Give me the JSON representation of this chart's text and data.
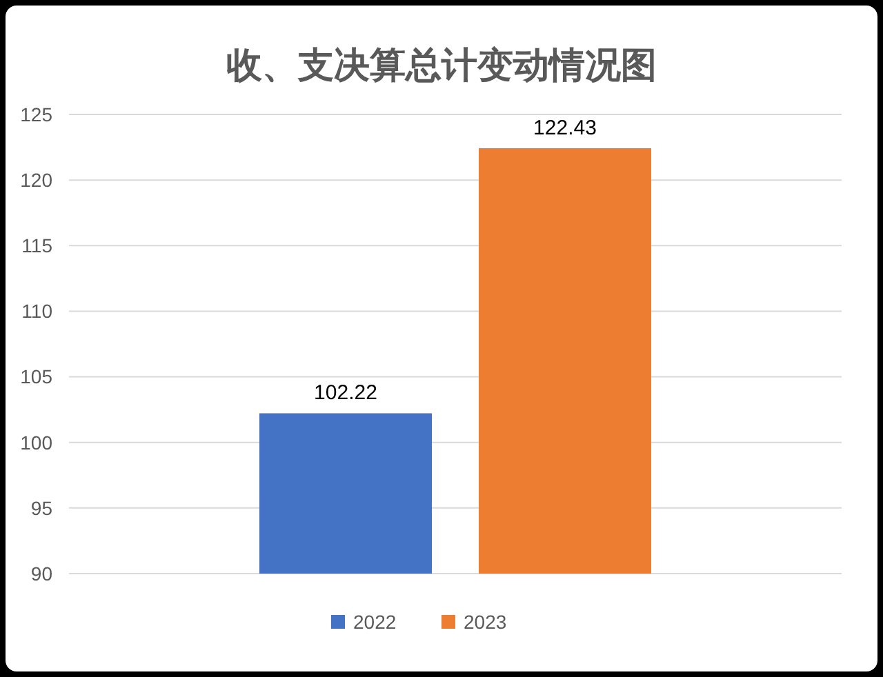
{
  "chart_data": {
    "type": "bar",
    "title": "收、支决算总计变动情况图",
    "categories": [
      null
    ],
    "series": [
      {
        "name": "2022",
        "color": "#4472c4",
        "values": [
          102.22
        ]
      },
      {
        "name": "2023",
        "color": "#ed7d31",
        "values": [
          122.43
        ]
      }
    ],
    "ylim": [
      90,
      125
    ],
    "yticks": [
      90,
      95,
      100,
      105,
      110,
      115,
      120,
      125
    ],
    "grid": "y",
    "data_labels": true,
    "legend": "bottom"
  }
}
